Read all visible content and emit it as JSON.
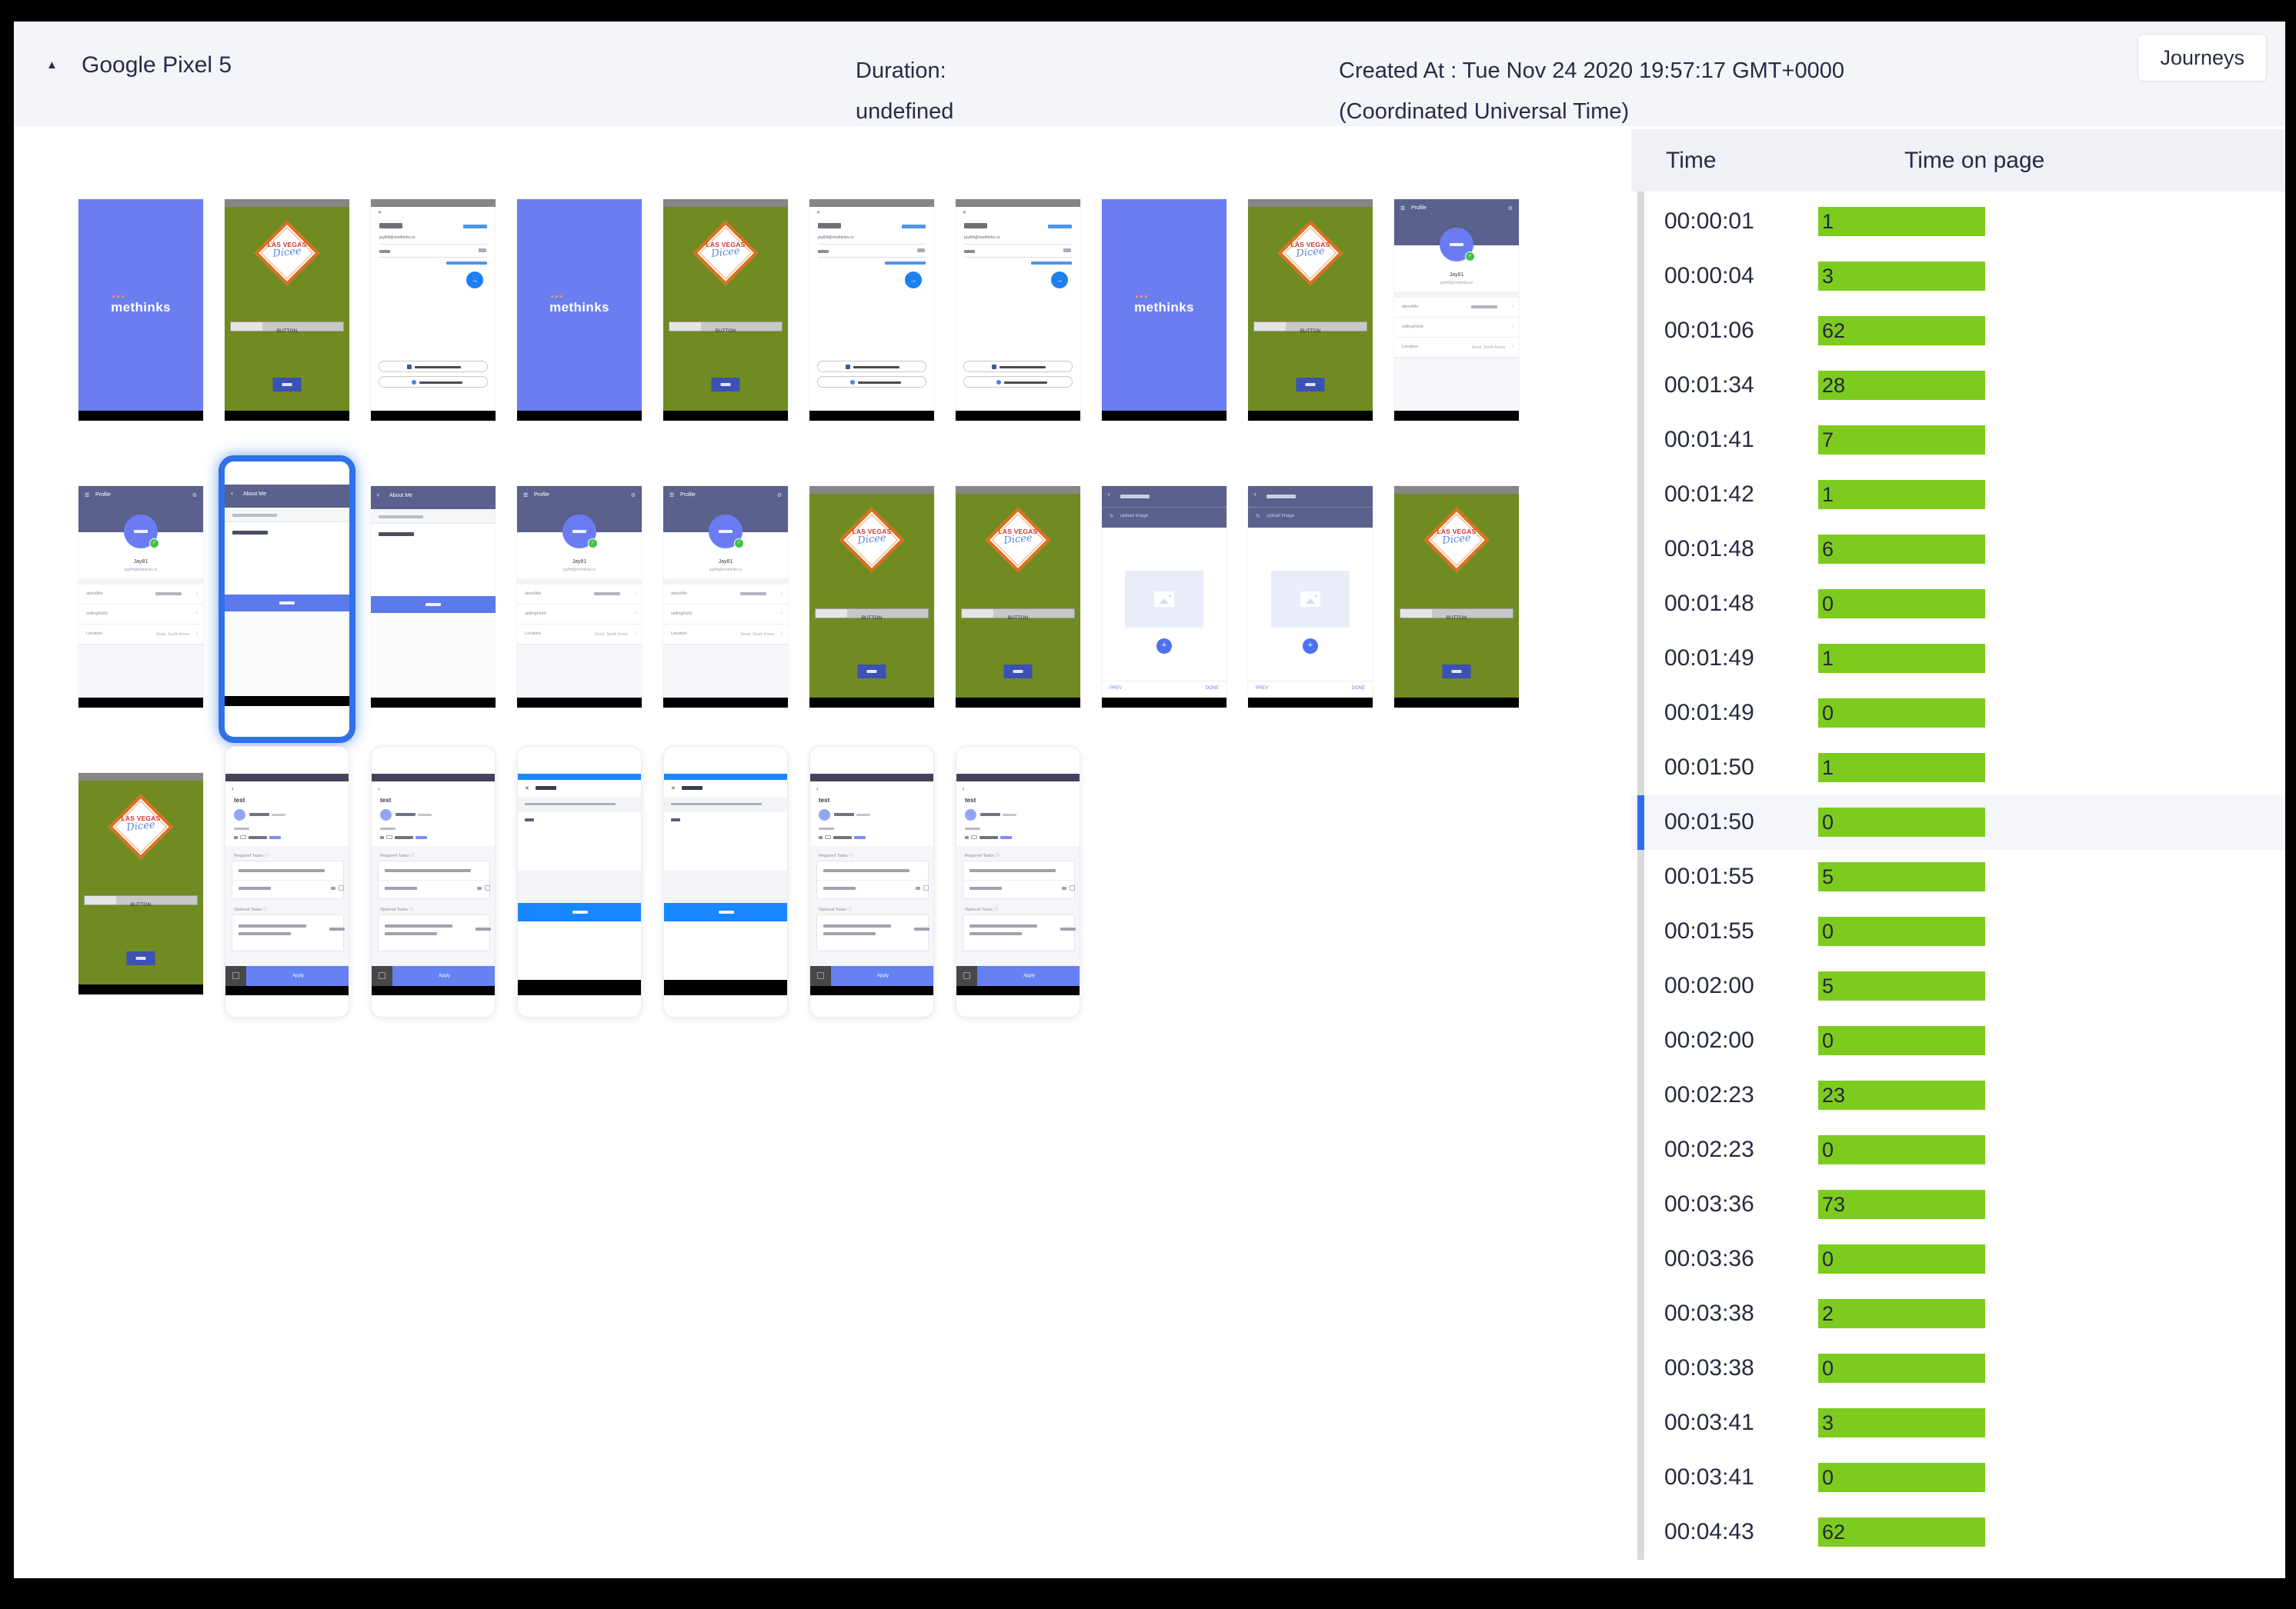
{
  "header": {
    "title": "Google Pixel 5",
    "duration_label": "Duration:",
    "duration_value": "undefined",
    "created_at_line1": "Created At : Tue Nov 24 2020 19:57:17 GMT+0000",
    "created_at_line2": "(Coordinated Universal Time)",
    "journeys_button": "Journeys"
  },
  "icons": {
    "collapse": "▲",
    "close": "✕",
    "menu": "☰",
    "gear": "⚙",
    "chevron_left": "‹",
    "chevron_right": "›",
    "plus": "+",
    "check": "✓",
    "refresh": "↻",
    "fab_arrow": "→",
    "info": "ⓘ"
  },
  "panel": {
    "columns": [
      "Time",
      "Time on page"
    ],
    "bar_color": "#7ECB1F",
    "selected_indicator_color": "#2C6FE8",
    "rows": [
      {
        "time": "00:00:01",
        "seconds": 1
      },
      {
        "time": "00:00:04",
        "seconds": 3
      },
      {
        "time": "00:01:06",
        "seconds": 62
      },
      {
        "time": "00:01:34",
        "seconds": 28
      },
      {
        "time": "00:01:41",
        "seconds": 7
      },
      {
        "time": "00:01:42",
        "seconds": 1
      },
      {
        "time": "00:01:48",
        "seconds": 6
      },
      {
        "time": "00:01:48",
        "seconds": 0
      },
      {
        "time": "00:01:49",
        "seconds": 1
      },
      {
        "time": "00:01:49",
        "seconds": 0
      },
      {
        "time": "00:01:50",
        "seconds": 1
      },
      {
        "time": "00:01:50",
        "seconds": 0,
        "selected": true
      },
      {
        "time": "00:01:55",
        "seconds": 5
      },
      {
        "time": "00:01:55",
        "seconds": 0
      },
      {
        "time": "00:02:00",
        "seconds": 5
      },
      {
        "time": "00:02:00",
        "seconds": 0
      },
      {
        "time": "00:02:23",
        "seconds": 23
      },
      {
        "time": "00:02:23",
        "seconds": 0
      },
      {
        "time": "00:03:36",
        "seconds": 73
      },
      {
        "time": "00:03:36",
        "seconds": 0
      },
      {
        "time": "00:03:38",
        "seconds": 2
      },
      {
        "time": "00:03:38",
        "seconds": 0
      },
      {
        "time": "00:03:41",
        "seconds": 3
      },
      {
        "time": "00:03:41",
        "seconds": 0
      },
      {
        "time": "00:04:43",
        "seconds": 62
      }
    ]
  },
  "thumbnails": {
    "rows": [
      [
        "methinks",
        "lvdice",
        "login",
        "methinks",
        "lvdice",
        "login",
        "login",
        "methinks",
        "lvdice",
        "profile"
      ],
      [
        "profile",
        "aboutme:selected",
        "aboutme",
        "profile",
        "profile",
        "lvdice",
        "lvdice",
        "upload",
        "upload",
        "lvdice"
      ],
      [
        "lvdice",
        "task:framed",
        "task:framed",
        "modal:framed",
        "modal:framed",
        "task:framed",
        "task:framed"
      ]
    ]
  },
  "screens": {
    "methinks": {
      "logo": "methinks"
    },
    "lvdice": {
      "line1": "LAS VEGAS",
      "line2": "Dicee",
      "button": "BUTTON"
    },
    "login": {
      "email": "jay84@methinks.io"
    },
    "profile": {
      "title": "Profile",
      "name": "Jay81",
      "email": "jay84@methinks.io",
      "fields": [
        "aboutMe",
        "sellingField",
        "Location"
      ],
      "location_value": "Seoul, South Korea"
    },
    "aboutme": {
      "title": "About Me"
    },
    "upload": {
      "title": "upload image",
      "prev": "PREV",
      "done": "DONE"
    },
    "task": {
      "title": "test",
      "required": "Required Tasks",
      "optional": "Optional Tasks",
      "apply": "Apply"
    }
  }
}
